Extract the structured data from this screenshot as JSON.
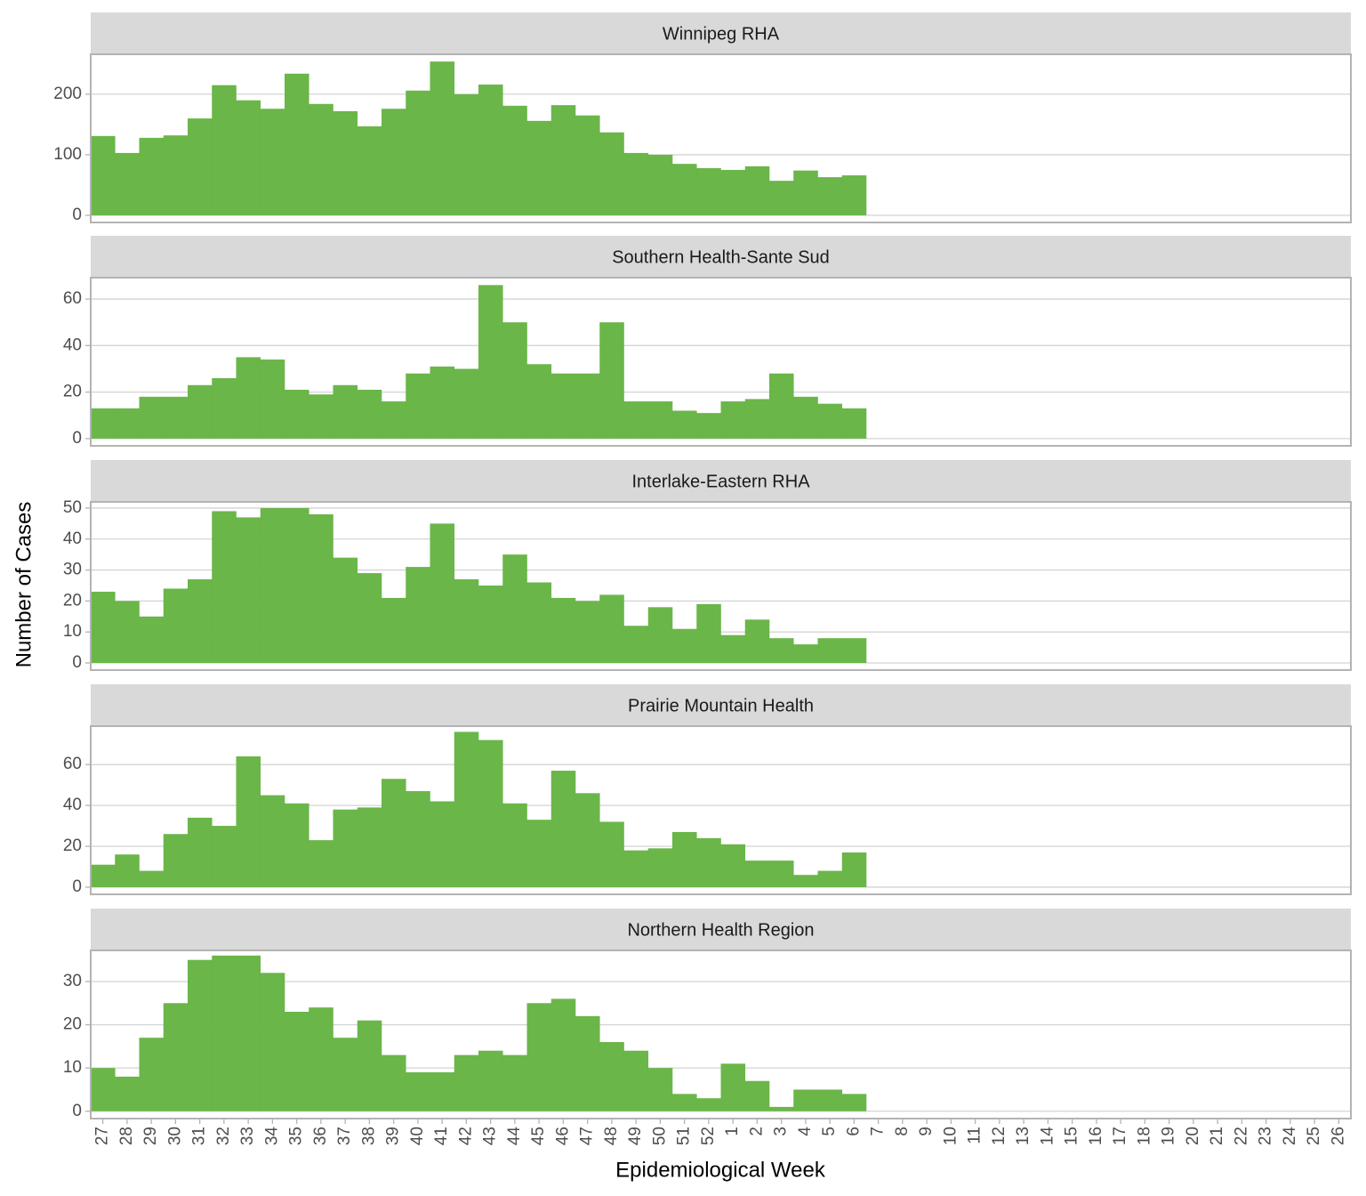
{
  "chart_data": {
    "type": "bar",
    "xlabel": "Epidemiological Week",
    "ylabel": "Number of Cases",
    "color": "#65b443",
    "grid": true,
    "categories": [
      "27",
      "28",
      "29",
      "30",
      "31",
      "32",
      "33",
      "34",
      "35",
      "36",
      "37",
      "38",
      "39",
      "40",
      "41",
      "42",
      "43",
      "44",
      "45",
      "46",
      "47",
      "48",
      "49",
      "50",
      "51",
      "52",
      "1",
      "2",
      "3",
      "4",
      "5",
      "6",
      "7",
      "8",
      "9",
      "10",
      "11",
      "12",
      "13",
      "14",
      "15",
      "16",
      "17",
      "18",
      "19",
      "20",
      "21",
      "22",
      "23",
      "24",
      "25",
      "26"
    ],
    "panels": [
      {
        "title": "Winnipeg RHA",
        "ylim": [
          -11.8,
          266
        ],
        "yticks": [
          0,
          100,
          200
        ],
        "values": [
          131,
          103,
          128,
          132,
          160,
          215,
          190,
          176,
          234,
          184,
          172,
          147,
          176,
          206,
          254,
          200,
          216,
          181,
          156,
          182,
          165,
          137,
          103,
          100,
          85,
          78,
          75,
          81,
          57,
          74,
          63,
          66,
          null,
          null,
          null,
          null,
          null,
          null,
          null,
          null,
          null,
          null,
          null,
          null,
          null,
          null,
          null,
          null,
          null,
          null,
          null,
          null
        ]
      },
      {
        "title": "Southern Health-Sante Sud",
        "ylim": [
          -3.1,
          69.2
        ],
        "yticks": [
          0,
          20,
          40,
          60
        ],
        "values": [
          13,
          13,
          18,
          18,
          23,
          26,
          35,
          34,
          21,
          19,
          23,
          21,
          16,
          28,
          31,
          30,
          66,
          50,
          32,
          28,
          28,
          50,
          16,
          16,
          12,
          11,
          16,
          17,
          28,
          18,
          15,
          13,
          null,
          null,
          null,
          null,
          null,
          null,
          null,
          null,
          null,
          null,
          null,
          null,
          null,
          null,
          null,
          null,
          null,
          null,
          null,
          null
        ]
      },
      {
        "title": "Interlake-Eastern RHA",
        "ylim": [
          -2.3,
          52
        ],
        "yticks": [
          0,
          10,
          20,
          30,
          40,
          50
        ],
        "values": [
          23,
          20,
          15,
          24,
          27,
          49,
          47,
          50,
          50,
          48,
          34,
          29,
          21,
          31,
          45,
          27,
          25,
          35,
          26,
          21,
          20,
          22,
          12,
          18,
          11,
          19,
          9,
          14,
          8,
          6,
          8,
          8,
          null,
          null,
          null,
          null,
          null,
          null,
          null,
          null,
          null,
          null,
          null,
          null,
          null,
          null,
          null,
          null,
          null,
          null,
          null,
          null
        ]
      },
      {
        "title": "Prairie Mountain Health",
        "ylim": [
          -3.5,
          78.8
        ],
        "yticks": [
          0,
          20,
          40,
          60
        ],
        "values": [
          11,
          16,
          8,
          26,
          34,
          30,
          64,
          45,
          41,
          23,
          38,
          39,
          53,
          47,
          42,
          76,
          72,
          41,
          33,
          57,
          46,
          32,
          18,
          19,
          27,
          24,
          21,
          13,
          13,
          6,
          8,
          17,
          null,
          null,
          null,
          null,
          null,
          null,
          null,
          null,
          null,
          null,
          null,
          null,
          null,
          null,
          null,
          null,
          null,
          null,
          null,
          null
        ]
      },
      {
        "title": "Northern Health Region",
        "ylim": [
          -1.7,
          37.2
        ],
        "yticks": [
          0,
          10,
          20,
          30
        ],
        "values": [
          10,
          8,
          17,
          25,
          35,
          36,
          36,
          32,
          23,
          24,
          17,
          21,
          13,
          9,
          9,
          13,
          14,
          13,
          25,
          26,
          22,
          16,
          14,
          10,
          4,
          3,
          11,
          7,
          1,
          5,
          5,
          4,
          null,
          null,
          null,
          null,
          null,
          null,
          null,
          null,
          null,
          null,
          null,
          null,
          null,
          null,
          null,
          null,
          null,
          null,
          null,
          null
        ]
      }
    ]
  }
}
